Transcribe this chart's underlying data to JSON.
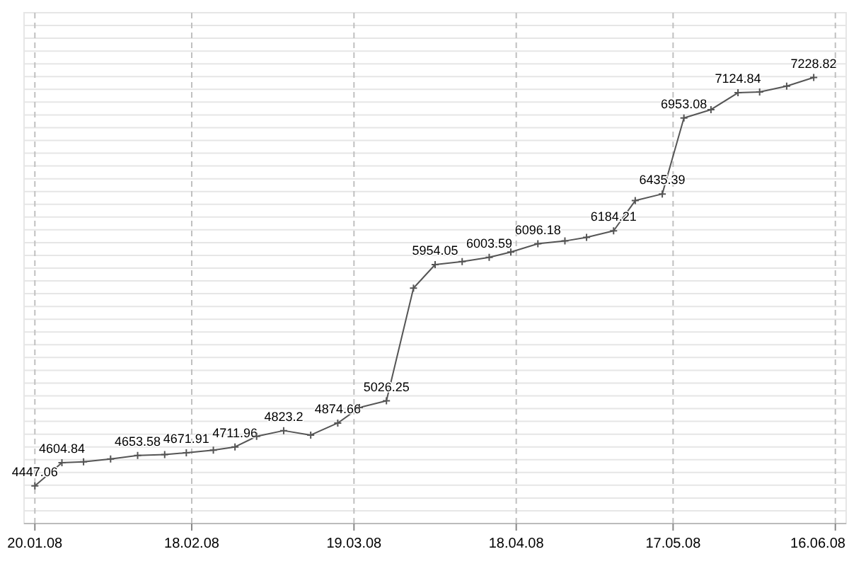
{
  "chart_data": {
    "type": "line",
    "marker": "cross",
    "line_style": "solid",
    "grid": true,
    "tick_labels": "x",
    "x": [
      "2008-01-20",
      "2008-01-25",
      "2008-01-29",
      "2008-02-03",
      "2008-02-08",
      "2008-02-13",
      "2008-02-17",
      "2008-02-22",
      "2008-02-26",
      "2008-03-01",
      "2008-03-06",
      "2008-03-11",
      "2008-03-16",
      "2008-03-20",
      "2008-03-25",
      "2008-03-30",
      "2008-04-03",
      "2008-04-08",
      "2008-04-13",
      "2008-04-17",
      "2008-04-22",
      "2008-04-27",
      "2008-05-01",
      "2008-05-06",
      "2008-05-10",
      "2008-05-15",
      "2008-05-19",
      "2008-05-24",
      "2008-05-29",
      "2008-06-02",
      "2008-06-07",
      "2008-06-12"
    ],
    "series": [
      {
        "color": "#555555",
        "values": [
          4447.06,
          4604.84,
          4610,
          4630,
          4653.58,
          4660,
          4671.91,
          4690,
          4711.96,
          4784,
          4823.2,
          4793,
          4874.66,
          4980,
          5026.25,
          5794,
          5954.05,
          5975,
          6003.59,
          6040,
          6096.18,
          6115,
          6140,
          6184.21,
          6390,
          6435.39,
          6953.08,
          7010,
          7124.84,
          7130,
          7170,
          7228.82
        ],
        "value_labels": [
          "4447.06",
          "4604.84",
          null,
          null,
          "4653.58",
          null,
          "4671.91",
          null,
          "4711.96",
          null,
          "4823.2",
          null,
          "4874.66",
          null,
          "5026.25",
          null,
          "5954.05",
          null,
          "6003.59",
          null,
          "6096.18",
          null,
          null,
          "6184.21",
          null,
          "6435.39",
          "6953.08",
          null,
          "7124.84",
          null,
          null,
          "7228.82"
        ]
      }
    ],
    "xlim": [
      "2008-01-18",
      "2008-06-18"
    ],
    "xticks": [
      {
        "value": "2008-01-20",
        "label": "20.01.08"
      },
      {
        "value": "2008-02-18",
        "label": "18.02.08"
      },
      {
        "value": "2008-03-19",
        "label": "19.03.08"
      },
      {
        "value": "2008-04-18",
        "label": "18.04.08"
      },
      {
        "value": "2008-05-17",
        "label": "17.05.08"
      },
      {
        "value": "2008-06-16",
        "label": "16.06.08"
      }
    ],
    "ylim": [
      4190,
      7670
    ],
    "yticks": [
      {
        "value": 4190,
        "label": null
      },
      {
        "value": 4277,
        "label": null
      },
      {
        "value": 4364,
        "label": null
      },
      {
        "value": 4451,
        "label": null
      },
      {
        "value": 4538,
        "label": null
      },
      {
        "value": 4625,
        "label": null
      },
      {
        "value": 4712,
        "label": null
      },
      {
        "value": 4799,
        "label": null
      },
      {
        "value": 4886,
        "label": null
      },
      {
        "value": 4973,
        "label": null
      },
      {
        "value": 5060,
        "label": null
      },
      {
        "value": 5147,
        "label": null
      },
      {
        "value": 5234,
        "label": null
      },
      {
        "value": 5321,
        "label": null
      },
      {
        "value": 5408,
        "label": null
      },
      {
        "value": 5495,
        "label": null
      },
      {
        "value": 5582,
        "label": null
      },
      {
        "value": 5669,
        "label": null
      },
      {
        "value": 5756,
        "label": null
      },
      {
        "value": 5843,
        "label": null
      },
      {
        "value": 5930,
        "label": null
      },
      {
        "value": 6017,
        "label": null
      },
      {
        "value": 6104,
        "label": null
      },
      {
        "value": 6191,
        "label": null
      },
      {
        "value": 6278,
        "label": null
      },
      {
        "value": 6365,
        "label": null
      },
      {
        "value": 6452,
        "label": null
      },
      {
        "value": 6539,
        "label": null
      },
      {
        "value": 6626,
        "label": null
      },
      {
        "value": 6713,
        "label": null
      },
      {
        "value": 6800,
        "label": null
      },
      {
        "value": 6887,
        "label": null
      },
      {
        "value": 6974,
        "label": null
      },
      {
        "value": 7061,
        "label": null
      },
      {
        "value": 7148,
        "label": null
      },
      {
        "value": 7235,
        "label": null
      },
      {
        "value": 7322,
        "label": null
      },
      {
        "value": 7409,
        "label": null
      },
      {
        "value": 7496,
        "label": null
      },
      {
        "value": 7583,
        "label": null
      },
      {
        "value": 7670,
        "label": null
      }
    ]
  }
}
